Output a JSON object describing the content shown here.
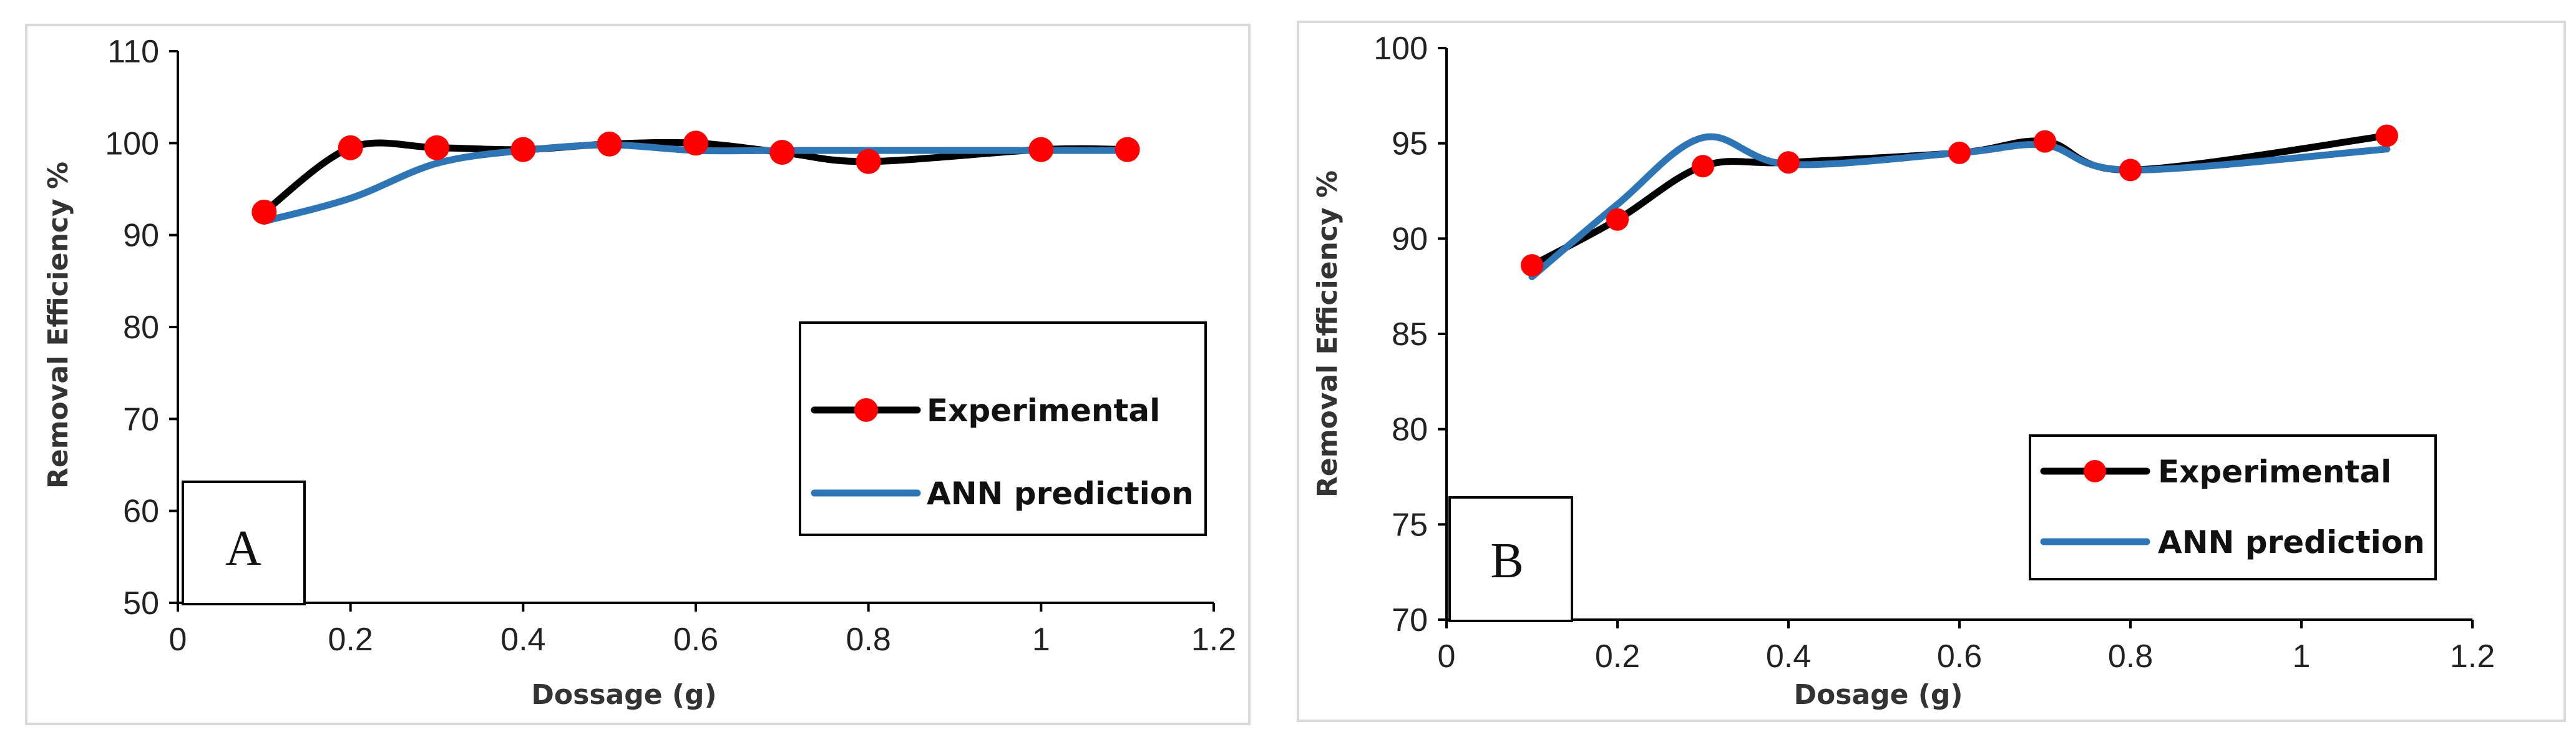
{
  "chart_data": [
    {
      "type": "line",
      "panel_label": "A",
      "title": "",
      "xlabel": "Dossage (g)",
      "ylabel": "Removal Efficiency %",
      "xlim": [
        0,
        1.2
      ],
      "ylim": [
        50,
        110
      ],
      "xticks": [
        0,
        0.2,
        0.4,
        0.6,
        0.8,
        1,
        1.2
      ],
      "yticks": [
        50,
        60,
        70,
        80,
        90,
        100,
        110
      ],
      "grid": false,
      "legend_position": "lower-right",
      "series": [
        {
          "name": "Experimental",
          "color": "#000000",
          "marker_color": "#ff0000",
          "x": [
            0.1,
            0.2,
            0.3,
            0.4,
            0.5,
            0.6,
            0.7,
            0.8,
            1.0,
            1.1
          ],
          "values": [
            92.5,
            99.5,
            99.5,
            99.3,
            99.9,
            100.0,
            99.0,
            98.0,
            99.3,
            99.3
          ]
        },
        {
          "name": "ANN prediction",
          "color": "#2e75b6",
          "x": [
            0.1,
            0.2,
            0.3,
            0.4,
            0.5,
            0.6,
            0.7,
            0.8,
            1.0,
            1.1
          ],
          "values": [
            91.5,
            94.0,
            97.8,
            99.2,
            99.8,
            99.2,
            99.2,
            99.2,
            99.2,
            99.2
          ]
        }
      ]
    },
    {
      "type": "line",
      "panel_label": "B",
      "title": "",
      "xlabel": "Dosage (g)",
      "ylabel": "Removal Efficiency %",
      "xlim": [
        0,
        1.2
      ],
      "ylim": [
        70,
        100
      ],
      "xticks": [
        0,
        0.2,
        0.4,
        0.6,
        0.8,
        1,
        1.2
      ],
      "yticks": [
        70,
        75,
        80,
        85,
        90,
        95,
        100
      ],
      "grid": false,
      "legend_position": "lower-right",
      "series": [
        {
          "name": "Experimental",
          "color": "#000000",
          "marker_color": "#ff0000",
          "x": [
            0.1,
            0.2,
            0.3,
            0.4,
            0.6,
            0.7,
            0.8,
            1.1
          ],
          "values": [
            88.6,
            91.0,
            93.8,
            94.0,
            94.5,
            95.1,
            93.6,
            95.4
          ]
        },
        {
          "name": "ANN prediction",
          "color": "#2e75b6",
          "x": [
            0.1,
            0.2,
            0.3,
            0.4,
            0.6,
            0.7,
            0.8,
            1.1
          ],
          "values": [
            88.0,
            91.8,
            95.3,
            93.9,
            94.5,
            94.9,
            93.6,
            94.7
          ]
        }
      ]
    }
  ]
}
